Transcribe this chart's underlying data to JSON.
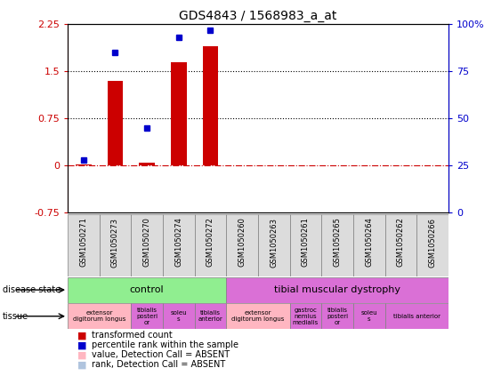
{
  "title": "GDS4843 / 1568983_a_at",
  "samples": [
    "GSM1050271",
    "GSM1050273",
    "GSM1050270",
    "GSM1050274",
    "GSM1050272",
    "GSM1050260",
    "GSM1050263",
    "GSM1050261",
    "GSM1050265",
    "GSM1050264",
    "GSM1050262",
    "GSM1050266"
  ],
  "bar_values": [
    0.02,
    1.35,
    0.05,
    1.65,
    1.9,
    0.0,
    0.0,
    0.0,
    0.0,
    0.0,
    0.0,
    0.0
  ],
  "dot_values_pct": [
    28,
    85,
    45,
    93,
    97,
    null,
    null,
    null,
    null,
    null,
    null,
    null
  ],
  "ylim_left": [
    -0.75,
    2.25
  ],
  "ylim_right": [
    0,
    100
  ],
  "yticks_left": [
    -0.75,
    0,
    0.75,
    1.5,
    2.25
  ],
  "yticks_right": [
    0,
    25,
    50,
    75,
    100
  ],
  "ytick_labels_left": [
    "-0.75",
    "0",
    "0.75",
    "1.5",
    "2.25"
  ],
  "ytick_labels_right": [
    "0",
    "25",
    "50",
    "75",
    "100%"
  ],
  "hlines": [
    0.75,
    1.5
  ],
  "zero_line": 0.0,
  "bar_color": "#CC0000",
  "dot_color": "#0000CC",
  "disease_state_groups": [
    {
      "label": "control",
      "start": 0,
      "end": 5,
      "color": "#90EE90"
    },
    {
      "label": "tibial muscular dystrophy",
      "start": 5,
      "end": 12,
      "color": "#DA70D6"
    }
  ],
  "tissue_groups": [
    {
      "label": "extensor\ndigitorum longus",
      "start": 0,
      "end": 2,
      "color": "#FFB6C1"
    },
    {
      "label": "tibialis\nposteri\nor",
      "start": 2,
      "end": 3,
      "color": "#DA70D6"
    },
    {
      "label": "soleu\ns",
      "start": 3,
      "end": 4,
      "color": "#DA70D6"
    },
    {
      "label": "tibialis\nanterior",
      "start": 4,
      "end": 5,
      "color": "#DA70D6"
    },
    {
      "label": "extensor\ndigitorum longus",
      "start": 5,
      "end": 7,
      "color": "#FFB6C1"
    },
    {
      "label": "gastroc\nnemius\nmedialis",
      "start": 7,
      "end": 8,
      "color": "#DA70D6"
    },
    {
      "label": "tibialis\nposteri\nor",
      "start": 8,
      "end": 9,
      "color": "#DA70D6"
    },
    {
      "label": "soleu\ns",
      "start": 9,
      "end": 10,
      "color": "#DA70D6"
    },
    {
      "label": "tibialis anterior",
      "start": 10,
      "end": 12,
      "color": "#DA70D6"
    }
  ],
  "legend_items": [
    {
      "color": "#CC0000",
      "label": "transformed count"
    },
    {
      "color": "#0000CC",
      "label": "percentile rank within the sample"
    },
    {
      "color": "#FFB6C1",
      "label": "value, Detection Call = ABSENT"
    },
    {
      "color": "#B0C4DE",
      "label": "rank, Detection Call = ABSENT"
    }
  ]
}
